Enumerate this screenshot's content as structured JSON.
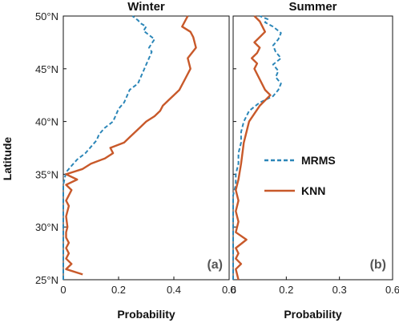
{
  "chart_data": {
    "type": "line",
    "ylabel": "Latitude",
    "ylim": [
      25,
      50
    ],
    "yticks": [
      "25°N",
      "30°N",
      "35°N",
      "40°N",
      "45°N",
      "50°N"
    ],
    "legend_position": "right",
    "colors": {
      "MRMS": "#2b86b8",
      "KNN": "#c8592a"
    },
    "panels": [
      {
        "title": "Winter",
        "tag": "(a)",
        "xlabel": "Probability",
        "xlim": [
          0,
          0.6
        ],
        "xticks": [
          "0",
          "0.2",
          "0.4",
          "0.6"
        ],
        "series": [
          {
            "name": "MRMS",
            "style": "dashed",
            "x": [
              0.0,
              0.0,
              0.0,
              0.0,
              0.0,
              0.0,
              0.0,
              0.0,
              0.0,
              0.0,
              0.0,
              0.005,
              0.01,
              0.03,
              0.05,
              0.08,
              0.1,
              0.12,
              0.13,
              0.15,
              0.18,
              0.19,
              0.2,
              0.22,
              0.23,
              0.24,
              0.27,
              0.28,
              0.29,
              0.3,
              0.31,
              0.32,
              0.31,
              0.32,
              0.33,
              0.31,
              0.29,
              0.3,
              0.28,
              0.27,
              0.25
            ],
            "y": [
              25.0,
              26.0,
              27.0,
              28.0,
              29.0,
              30.0,
              31.0,
              32.0,
              33.0,
              33.6,
              34.0,
              34.6,
              35.2,
              35.8,
              36.4,
              37.0,
              37.6,
              38.2,
              38.8,
              39.4,
              40.0,
              40.6,
              41.2,
              41.8,
              42.4,
              43.0,
              43.6,
              44.2,
              44.8,
              45.4,
              46.0,
              46.6,
              47.0,
              47.4,
              47.8,
              48.2,
              48.6,
              49.0,
              49.3,
              49.6,
              50.0
            ]
          },
          {
            "name": "KNN",
            "style": "solid",
            "x": [
              0.07,
              0.01,
              0.03,
              0.01,
              0.02,
              0.01,
              0.02,
              0.01,
              0.01,
              0.015,
              0.01,
              0.02,
              0.01,
              0.02,
              0.03,
              0.01,
              0.05,
              0.01,
              0.07,
              0.1,
              0.15,
              0.18,
              0.17,
              0.22,
              0.24,
              0.26,
              0.28,
              0.3,
              0.33,
              0.35,
              0.36,
              0.38,
              0.4,
              0.42,
              0.44,
              0.46,
              0.45,
              0.48,
              0.47,
              0.46,
              0.43,
              0.45
            ],
            "y": [
              25.5,
              26.0,
              26.5,
              27.0,
              27.5,
              28.0,
              28.5,
              29.0,
              29.5,
              30.0,
              31.0,
              32.0,
              32.5,
              33.0,
              33.5,
              34.0,
              34.5,
              35.0,
              35.5,
              36.0,
              36.5,
              37.0,
              37.5,
              38.0,
              38.5,
              39.0,
              39.5,
              40.0,
              40.5,
              41.0,
              41.5,
              42.0,
              42.5,
              43.0,
              44.0,
              45.0,
              46.0,
              47.0,
              48.0,
              48.5,
              49.0,
              50.0
            ]
          }
        ]
      },
      {
        "title": "Summer",
        "tag": "(b)",
        "xlabel": "Probability",
        "xlim": [
          0,
          0.6
        ],
        "xticks": [
          "0",
          "0.2",
          "0.3",
          "0.6"
        ],
        "series": [
          {
            "name": "MRMS",
            "style": "dashed",
            "x": [
              0.0,
              0.0,
              0.0,
              0.0,
              0.0,
              0.0,
              0.0,
              0.0,
              0.0,
              0.01,
              0.01,
              0.02,
              0.02,
              0.03,
              0.03,
              0.04,
              0.06,
              0.1,
              0.15,
              0.17,
              0.18,
              0.16,
              0.17,
              0.15,
              0.18,
              0.16,
              0.15,
              0.17,
              0.18,
              0.15,
              0.12,
              0.13,
              0.1
            ],
            "y": [
              25.0,
              26.0,
              27.0,
              28.0,
              29.0,
              30.0,
              31.0,
              32.0,
              33.0,
              34.0,
              35.0,
              36.0,
              37.0,
              38.0,
              39.0,
              40.0,
              41.0,
              41.8,
              42.4,
              43.0,
              43.6,
              44.2,
              44.8,
              45.4,
              46.0,
              46.6,
              47.2,
              47.8,
              48.4,
              49.0,
              49.4,
              49.7,
              50.0
            ]
          },
          {
            "name": "KNN",
            "style": "solid",
            "x": [
              0.02,
              0.01,
              0.03,
              0.01,
              0.02,
              0.01,
              0.05,
              0.01,
              0.02,
              0.01,
              0.02,
              0.01,
              0.02,
              0.03,
              0.04,
              0.06,
              0.1,
              0.14,
              0.12,
              0.1,
              0.08,
              0.09,
              0.07,
              0.09,
              0.1,
              0.08,
              0.1,
              0.12,
              0.1,
              0.08
            ],
            "y": [
              25.0,
              26.0,
              26.5,
              27.0,
              27.5,
              28.0,
              28.8,
              29.5,
              30.5,
              31.5,
              32.5,
              33.5,
              34.5,
              36.0,
              38.0,
              40.0,
              41.5,
              42.5,
              43.0,
              44.0,
              45.0,
              45.5,
              46.0,
              46.5,
              47.0,
              47.5,
              48.0,
              48.5,
              49.5,
              50.0
            ]
          }
        ]
      }
    ]
  }
}
